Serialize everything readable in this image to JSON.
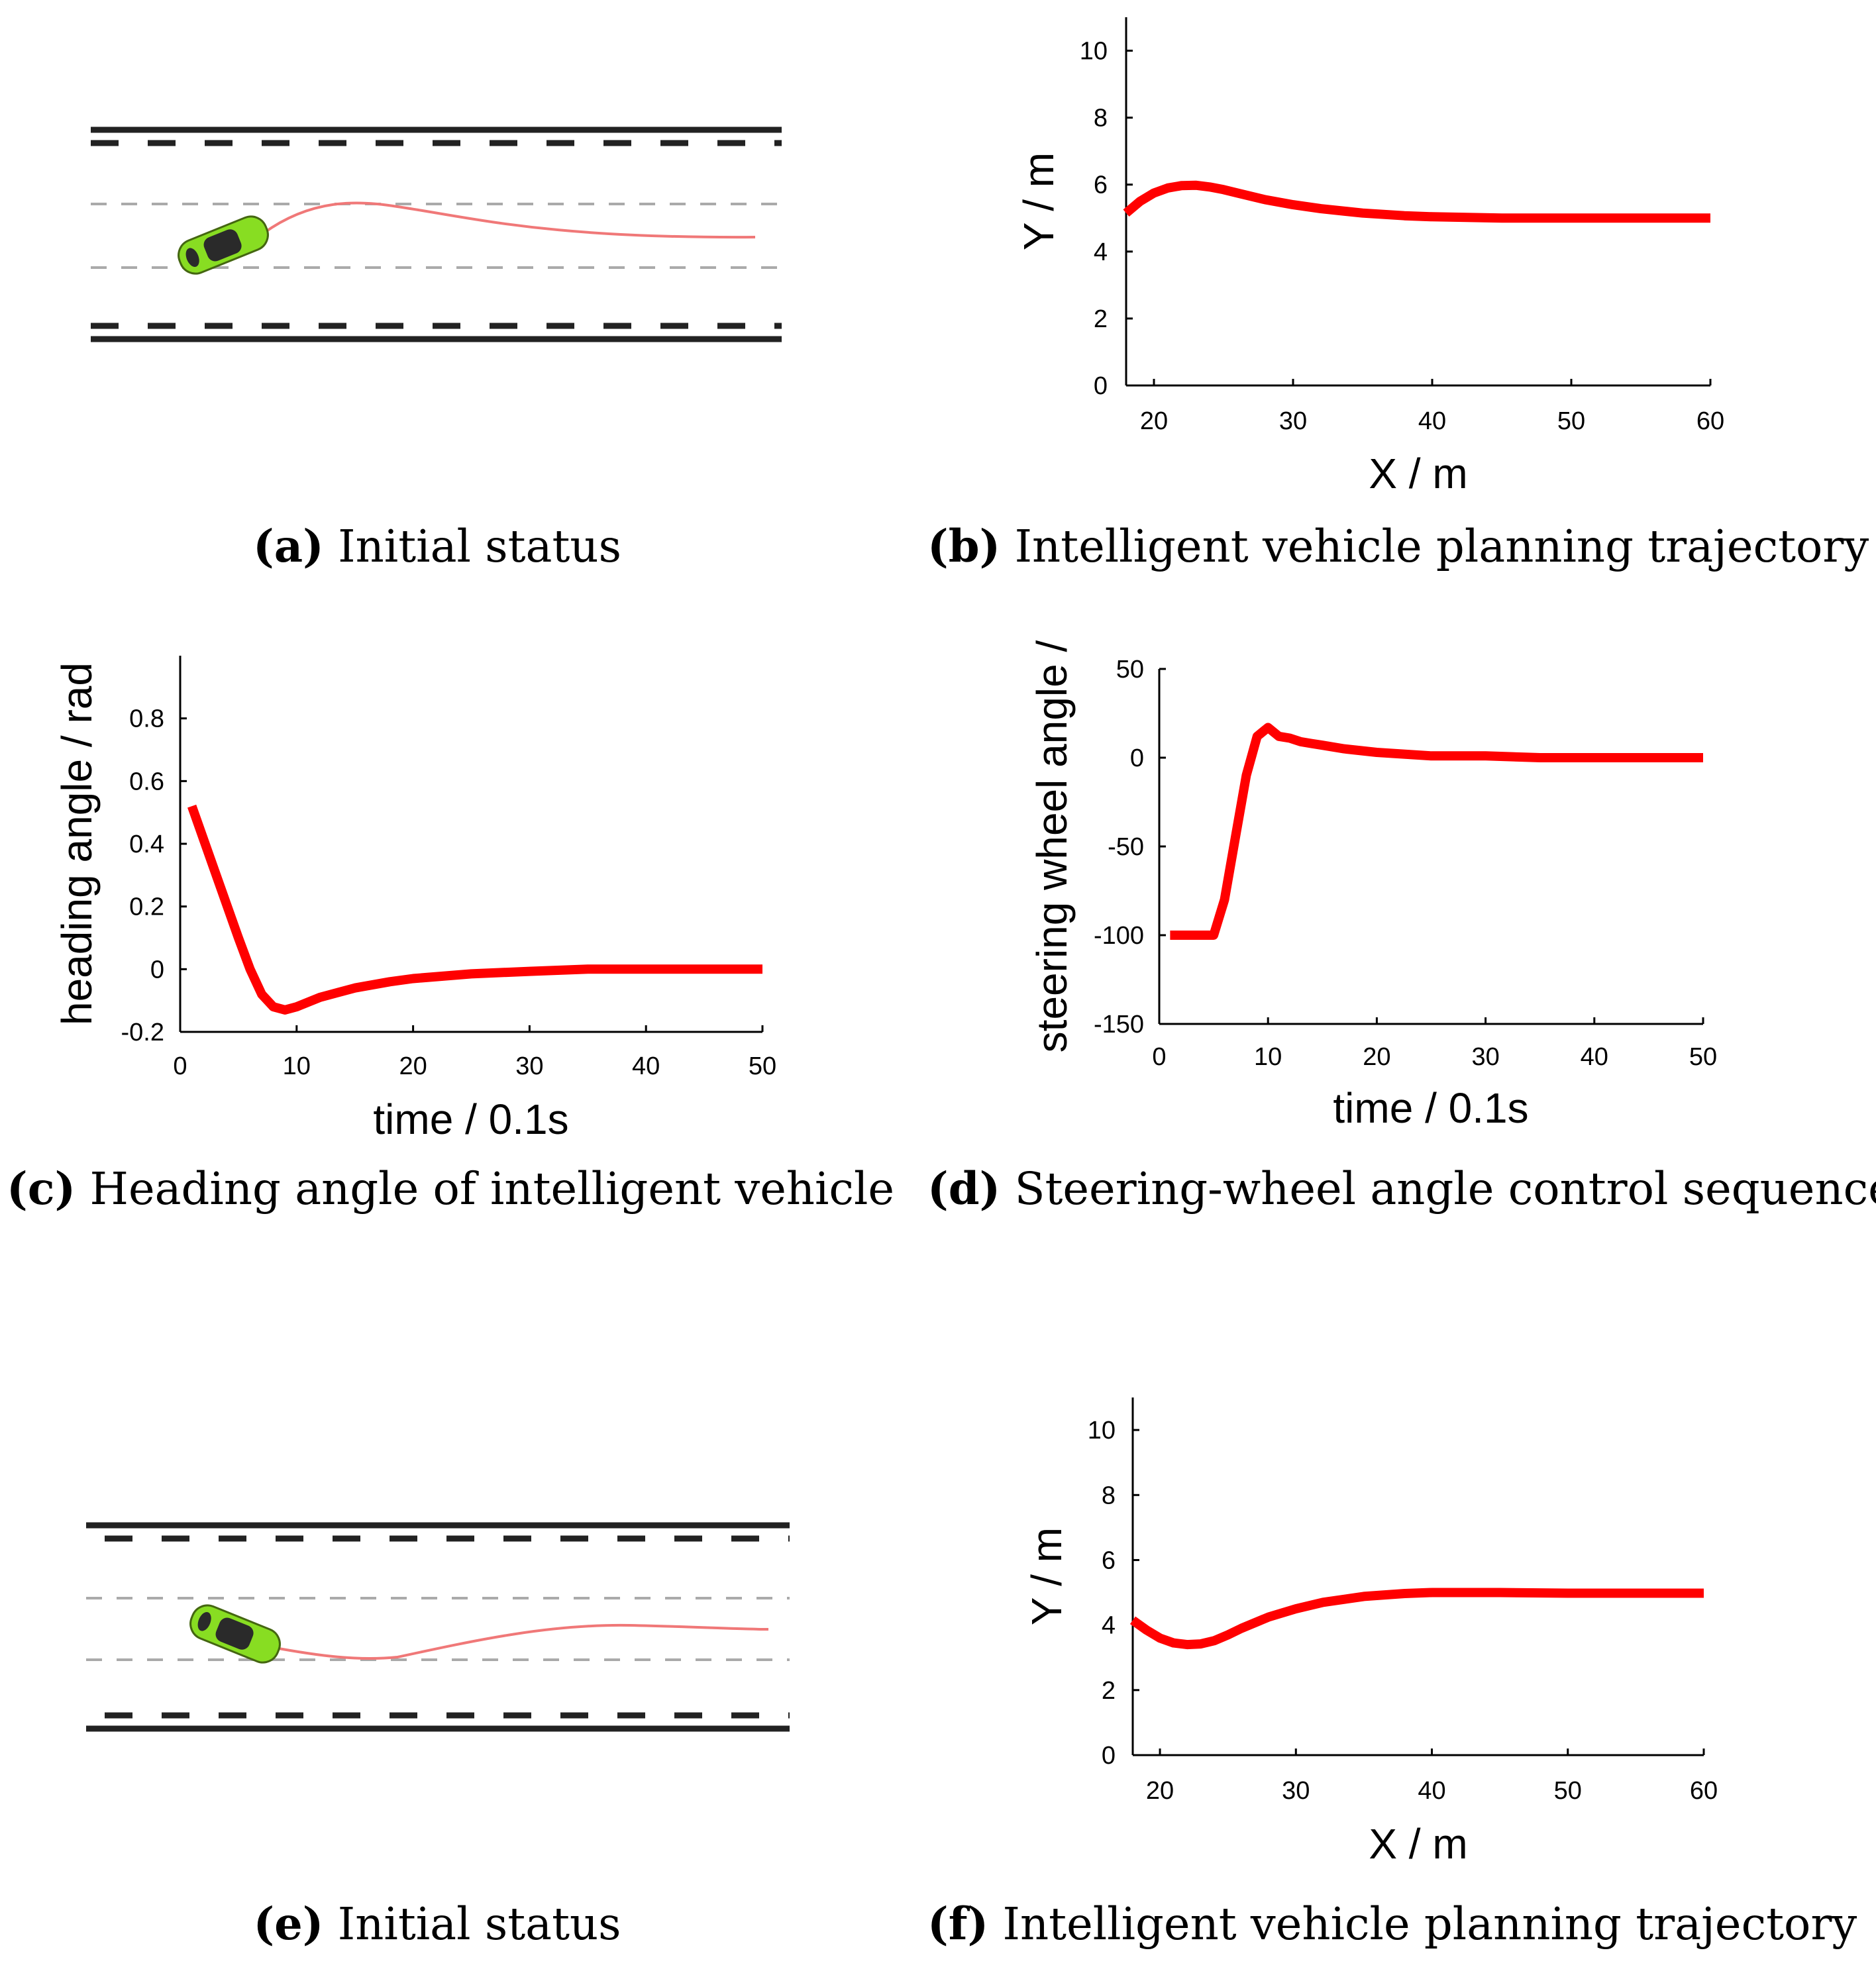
{
  "panels": {
    "a": {
      "label": "(a)",
      "caption": "Initial status"
    },
    "b": {
      "label": "(b)",
      "caption": "Intelligent vehicle planning trajectory"
    },
    "c": {
      "label": "(c)",
      "caption": "Heading angle of intelligent vehicle"
    },
    "d": {
      "label": "(d)",
      "caption": "Steering-wheel angle control sequence"
    },
    "e": {
      "label": "(e)",
      "caption": "Initial status"
    },
    "f": {
      "label": "(f)",
      "caption": "Intelligent vehicle planning trajectory"
    }
  },
  "colors": {
    "series": "#ff0000",
    "trajectory": "#f07878",
    "axis": "#000000",
    "car": "#88dd22"
  },
  "chart_data": [
    {
      "id": "b",
      "type": "line",
      "title": "",
      "xlabel": "X / m",
      "ylabel": "Y / m",
      "xlim": [
        18,
        60
      ],
      "ylim": [
        0,
        11
      ],
      "xticks": [
        20,
        30,
        40,
        50,
        60
      ],
      "yticks": [
        0,
        2,
        4,
        6,
        8,
        10
      ],
      "series": [
        {
          "name": "trajectory",
          "x": [
            18,
            19,
            20,
            21,
            22,
            23,
            24,
            25,
            26,
            28,
            30,
            32,
            35,
            38,
            40,
            45,
            50,
            55,
            60
          ],
          "y": [
            5.15,
            5.5,
            5.75,
            5.9,
            5.97,
            5.98,
            5.93,
            5.85,
            5.75,
            5.55,
            5.4,
            5.28,
            5.15,
            5.07,
            5.04,
            5.0,
            5.0,
            5.0,
            5.0
          ]
        }
      ]
    },
    {
      "id": "c",
      "type": "line",
      "title": "",
      "xlabel": "time / 0.1s",
      "ylabel": "heading angle / rad",
      "xlim": [
        0,
        50
      ],
      "ylim": [
        -0.2,
        1.0
      ],
      "xticks": [
        0,
        10,
        20,
        30,
        40,
        50
      ],
      "yticks": [
        -0.2,
        0,
        0.2,
        0.4,
        0.6,
        0.8
      ],
      "series": [
        {
          "name": "heading",
          "x": [
            1,
            3,
            5,
            6,
            7,
            8,
            9,
            10,
            12,
            15,
            18,
            20,
            25,
            30,
            35,
            40,
            45,
            50
          ],
          "y": [
            0.52,
            0.31,
            0.1,
            0.0,
            -0.08,
            -0.12,
            -0.13,
            -0.12,
            -0.09,
            -0.06,
            -0.04,
            -0.03,
            -0.015,
            -0.007,
            0.0,
            0.0,
            0.0,
            0.0
          ]
        }
      ]
    },
    {
      "id": "d",
      "type": "line",
      "title": "",
      "xlabel": "time / 0.1s",
      "ylabel": "steering wheel angle /",
      "xlim": [
        0,
        50
      ],
      "ylim": [
        -150,
        50
      ],
      "xticks": [
        0,
        10,
        20,
        30,
        40,
        50
      ],
      "yticks": [
        -150,
        -100,
        -50,
        0,
        50
      ],
      "series": [
        {
          "name": "steering",
          "x": [
            1,
            3,
            5,
            6,
            7,
            8,
            9,
            10,
            11,
            12,
            13,
            14,
            15,
            17,
            20,
            25,
            30,
            35,
            40,
            45,
            50
          ],
          "y": [
            -100,
            -100,
            -100,
            -80,
            -45,
            -10,
            12,
            17,
            12,
            11,
            9,
            8,
            7,
            5,
            3,
            1,
            1,
            0,
            0,
            0,
            0
          ]
        }
      ]
    },
    {
      "id": "f",
      "type": "line",
      "title": "",
      "xlabel": "X / m",
      "ylabel": "Y / m",
      "xlim": [
        18,
        60
      ],
      "ylim": [
        0,
        11
      ],
      "xticks": [
        20,
        30,
        40,
        50,
        60
      ],
      "yticks": [
        0,
        2,
        4,
        6,
        8,
        10
      ],
      "series": [
        {
          "name": "trajectory",
          "x": [
            18,
            19,
            20,
            21,
            22,
            23,
            24,
            25,
            26,
            28,
            30,
            32,
            35,
            38,
            40,
            45,
            50,
            55,
            60
          ],
          "y": [
            4.15,
            3.85,
            3.6,
            3.45,
            3.4,
            3.42,
            3.52,
            3.7,
            3.9,
            4.25,
            4.5,
            4.7,
            4.88,
            4.97,
            5.0,
            5.0,
            4.98,
            4.98,
            4.98
          ]
        }
      ]
    }
  ]
}
